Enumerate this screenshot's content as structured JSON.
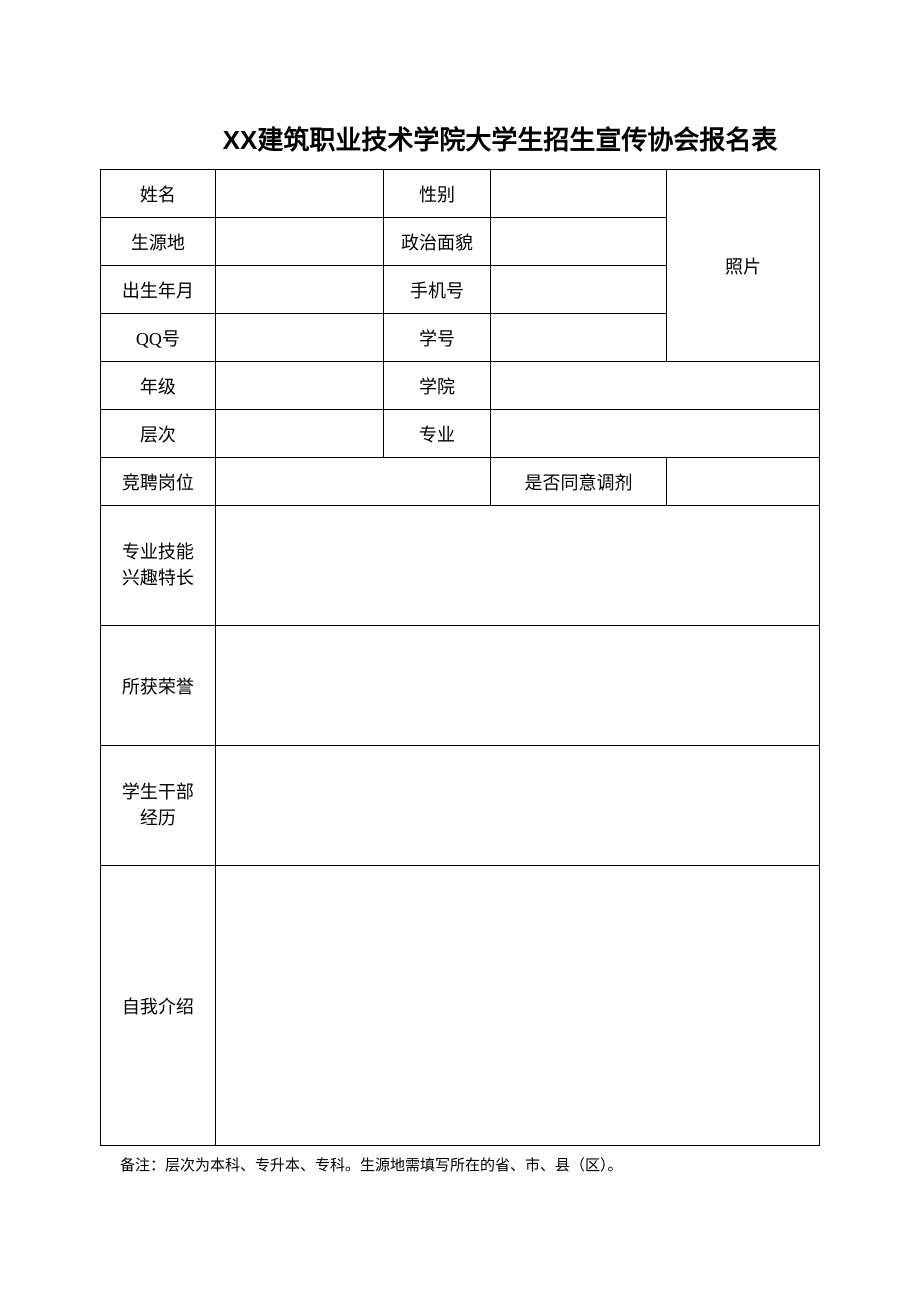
{
  "title": "XX建筑职业技术学院大学生招生宣传协会报名表",
  "labels": {
    "name": "姓名",
    "gender": "性别",
    "origin": "生源地",
    "political": "政治面貌",
    "birth": "出生年月",
    "phone": "手机号",
    "qq": "QQ号",
    "studentId": "学号",
    "grade": "年级",
    "college": "学院",
    "level": "层次",
    "major": "专业",
    "position": "竞聘岗位",
    "adjust": "是否同意调剂",
    "skills_l1": "专业技能",
    "skills_l2": "兴趣特长",
    "honors": "所获荣誉",
    "cadre_l1": "学生干部",
    "cadre_l2": "经历",
    "intro": "自我介绍",
    "photo": "照片"
  },
  "values": {
    "name": "",
    "gender": "",
    "origin": "",
    "political": "",
    "birth": "",
    "phone": "",
    "qq": "",
    "studentId": "",
    "grade": "",
    "college": "",
    "level": "",
    "major": "",
    "position": "",
    "adjust": "",
    "skills": "",
    "honors": "",
    "cadre": "",
    "intro": ""
  },
  "footnote": "备注：层次为本科、专升本、专科。生源地需填写所在的省、市、县（区）。",
  "style": {
    "title_fontsize": 26,
    "cell_fontsize": 18,
    "footnote_fontsize": 15,
    "border_color": "#000000",
    "background_color": "#ffffff",
    "text_color": "#000000",
    "short_row_height": 48,
    "tall_row_height": 120,
    "tallest_row_height": 280
  }
}
